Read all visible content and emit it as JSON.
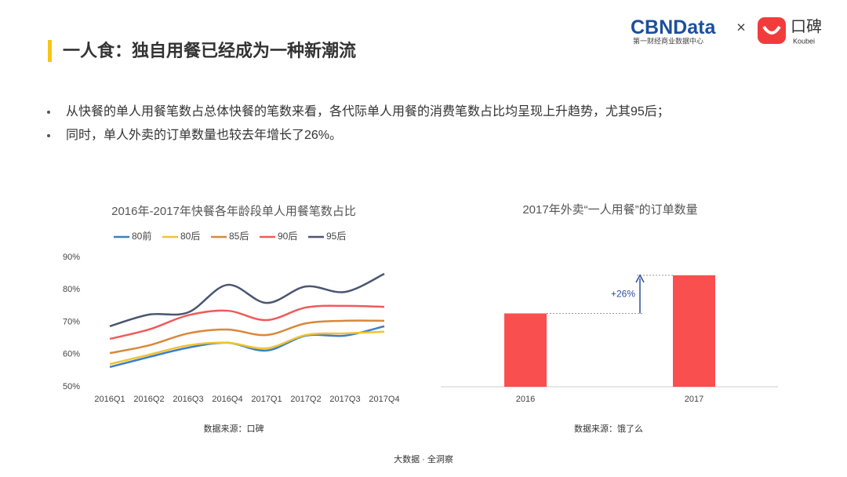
{
  "header": {
    "title": "一人食：独自用餐已经成为一种新潮流"
  },
  "logos": {
    "cbn_a": "CBN",
    "cbn_b": "Data",
    "cbn_sub": "第一财经商业数据中心",
    "times": "×",
    "koubei": "口碑",
    "koubei_en": "Koubei"
  },
  "bullets": [
    "从快餐的单人用餐笔数占总体快餐的笔数来看，各代际单人用餐的消费笔数占比均呈现上升趋势，尤其95后；",
    "同时，单人外卖的订单数量也较去年增长了26%。"
  ],
  "chart_data": [
    {
      "type": "line",
      "title": "2016年-2017年快餐各年龄段单人用餐笔数占比",
      "categories": [
        "2016Q1",
        "2016Q2",
        "2016Q3",
        "2016Q4",
        "2017Q1",
        "2017Q2",
        "2017Q3",
        "2017Q4"
      ],
      "series": [
        {
          "name": "80前",
          "color": "#3b7fc8",
          "values": [
            56.1,
            59.2,
            62.1,
            63.6,
            61.2,
            65.8,
            65.8,
            68.7
          ]
        },
        {
          "name": "80后",
          "color": "#f2c230",
          "values": [
            57.0,
            59.9,
            62.8,
            63.6,
            61.9,
            66.0,
            66.5,
            67.0
          ]
        },
        {
          "name": "85后",
          "color": "#d9873a",
          "values": [
            60.4,
            62.8,
            66.5,
            67.7,
            66.0,
            69.6,
            70.4,
            70.4
          ]
        },
        {
          "name": "90后",
          "color": "#f05a5a",
          "values": [
            64.8,
            67.7,
            72.1,
            73.5,
            70.6,
            74.5,
            75.0,
            74.7
          ]
        },
        {
          "name": "95后",
          "color": "#4a5670",
          "values": [
            68.7,
            72.3,
            73.0,
            81.5,
            75.9,
            81.0,
            79.3,
            84.9
          ]
        }
      ],
      "ylim": [
        50,
        90
      ],
      "yticks": [
        {
          "value": 50,
          "label": "50%"
        },
        {
          "value": 60,
          "label": "60%"
        },
        {
          "value": 70,
          "label": "70%"
        },
        {
          "value": 80,
          "label": "80%"
        },
        {
          "value": 90,
          "label": "90%"
        }
      ],
      "grid": false,
      "source": "数据来源：口碑"
    },
    {
      "type": "bar",
      "title": "2017年外卖“一人用餐”的订单数量",
      "categories": [
        "2016",
        "2017"
      ],
      "values": [
        100,
        126
      ],
      "color": "#f94f4f",
      "ylim": [
        50,
        135
      ],
      "annotation": "+26%",
      "source": "数据来源：饿了么"
    }
  ],
  "footer": "大数据 · 全洞察"
}
